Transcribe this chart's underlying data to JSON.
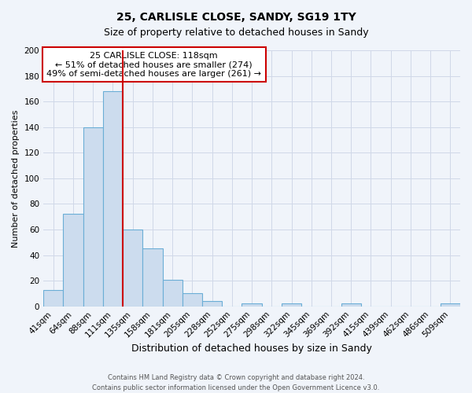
{
  "title": "25, CARLISLE CLOSE, SANDY, SG19 1TY",
  "subtitle": "Size of property relative to detached houses in Sandy",
  "xlabel": "Distribution of detached houses by size in Sandy",
  "ylabel": "Number of detached properties",
  "bar_labels": [
    "41sqm",
    "64sqm",
    "88sqm",
    "111sqm",
    "135sqm",
    "158sqm",
    "181sqm",
    "205sqm",
    "228sqm",
    "252sqm",
    "275sqm",
    "298sqm",
    "322sqm",
    "345sqm",
    "369sqm",
    "392sqm",
    "415sqm",
    "439sqm",
    "462sqm",
    "486sqm",
    "509sqm"
  ],
  "bar_values": [
    13,
    72,
    140,
    168,
    60,
    45,
    21,
    10,
    4,
    0,
    2,
    0,
    2,
    0,
    0,
    2,
    0,
    0,
    0,
    0,
    2
  ],
  "bar_color": "#ccdcee",
  "bar_edge_color": "#6baed6",
  "vline_color": "#cc0000",
  "vline_index": 3.5,
  "annotation_text": "25 CARLISLE CLOSE: 118sqm\n← 51% of detached houses are smaller (274)\n49% of semi-detached houses are larger (261) →",
  "annotation_box_color": "#ffffff",
  "annotation_box_edge": "#cc0000",
  "ylim": [
    0,
    200
  ],
  "yticks": [
    0,
    20,
    40,
    60,
    80,
    100,
    120,
    140,
    160,
    180,
    200
  ],
  "grid_color": "#d0d8e8",
  "footer1": "Contains HM Land Registry data © Crown copyright and database right 2024.",
  "footer2": "Contains public sector information licensed under the Open Government Licence v3.0.",
  "background_color": "#f0f4fa",
  "plot_bg_color": "#f0f4fa",
  "title_fontsize": 10,
  "subtitle_fontsize": 9,
  "xlabel_fontsize": 9,
  "ylabel_fontsize": 8,
  "tick_fontsize": 7.5,
  "footer_fontsize": 6,
  "annot_fontsize": 8
}
